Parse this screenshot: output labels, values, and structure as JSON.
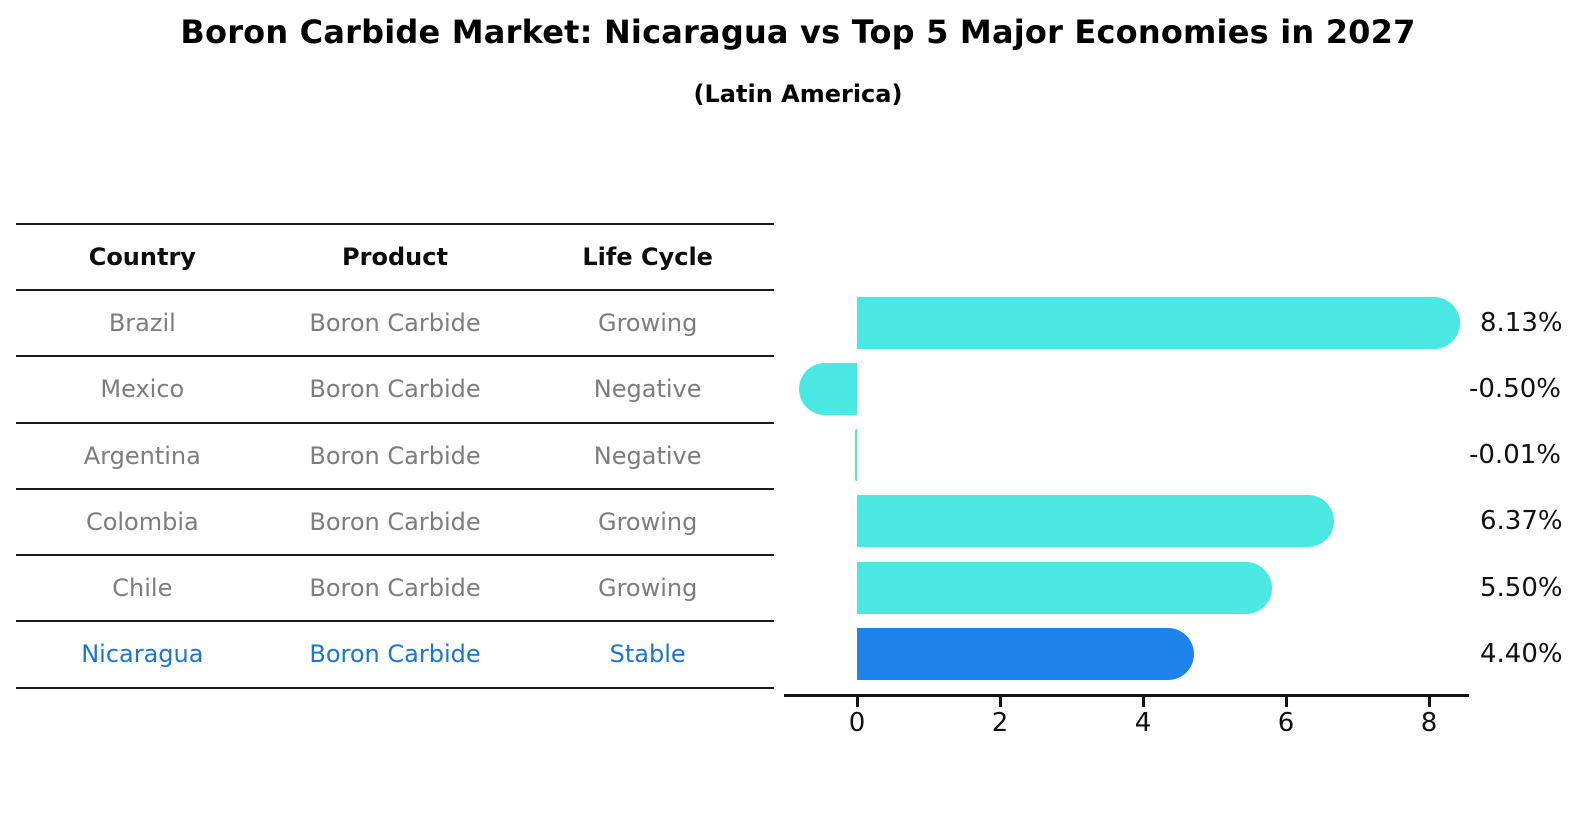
{
  "title": "Boron Carbide Market: Nicaragua vs Top 5 Major Economies in 2027",
  "subtitle": "(Latin America)",
  "table": {
    "headers": [
      "Country",
      "Product",
      "Life Cycle"
    ],
    "rows": [
      {
        "country": "Brazil",
        "product": "Boron Carbide",
        "life_cycle": "Growing",
        "highlight": false
      },
      {
        "country": "Mexico",
        "product": "Boron Carbide",
        "life_cycle": "Negative",
        "highlight": false
      },
      {
        "country": "Argentina",
        "product": "Boron Carbide",
        "life_cycle": "Negative",
        "highlight": false
      },
      {
        "country": "Colombia",
        "product": "Boron Carbide",
        "life_cycle": "Growing",
        "highlight": false
      },
      {
        "country": "Chile",
        "product": "Boron Carbide",
        "life_cycle": "Growing",
        "highlight": false
      },
      {
        "country": "Nicaragua",
        "product": "Boron Carbide",
        "life_cycle": "Stable",
        "highlight": true
      }
    ]
  },
  "chart_data": {
    "type": "bar",
    "orientation": "horizontal",
    "title": "Boron Carbide Market: Nicaragua vs Top 5 Major Economies in 2027 (Latin America)",
    "categories": [
      "Brazil",
      "Mexico",
      "Argentina",
      "Colombia",
      "Chile",
      "Nicaragua"
    ],
    "values": [
      8.13,
      -0.5,
      -0.01,
      6.37,
      5.5,
      4.4
    ],
    "value_labels": [
      "8.13%",
      "-0.50%",
      "-0.01%",
      "6.37%",
      "5.50%",
      "4.40%"
    ],
    "x_ticks": [
      0,
      2,
      4,
      6,
      8
    ],
    "xlim": [
      -1.05,
      8.55
    ],
    "grid": false,
    "legend": "none",
    "xlabel": "",
    "ylabel": "",
    "highlight_index": 5,
    "bar_color": "#4BE8E3",
    "highlight_bar_color": "#1E82EB",
    "highlight_text_color": "#1A76D2"
  },
  "colors": {
    "background": "#ffffff",
    "table_line": "#1a1a1a",
    "text_gray": "#7d7d7d",
    "text_black": "#111111"
  }
}
